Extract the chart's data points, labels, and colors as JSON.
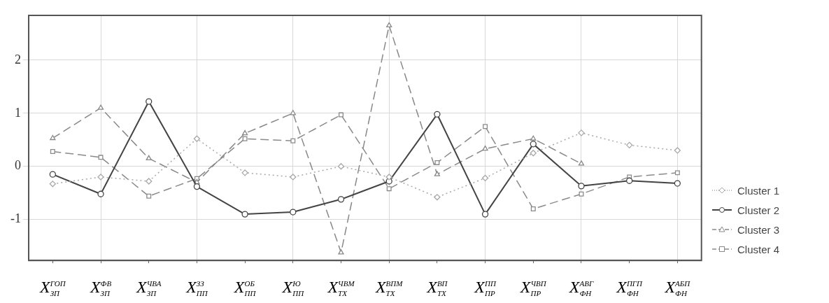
{
  "chart_data": {
    "type": "line",
    "categories": [
      "X$^{ГОП}$$_{ЗП}$",
      "X$^{ФВ}$$_{ЗП}$",
      "X$^{ЧВА}$$_{ЗП}$",
      "X$^{ЗЗ}$$_{ПП}$",
      "X$^{ОБ}$$_{ПП}$",
      "X$^{Ю}$$_{ПП}$",
      "X$^{ЧВМ}$$_{ТХ}$",
      "X$^{ВПМ}$$_{ТХ}$",
      "X$^{ВП}$$_{ТХ}$",
      "X$^{ПП}$$_{ПР}$",
      "X$^{ЧВП}$$_{ПР}$",
      "X$^{АВГ}$$_{ФН}$",
      "X$^{ПГП}$$_{ФН}$",
      "X$^{АБП}$$_{ФН}$"
    ],
    "series": [
      {
        "name": "Cluster 1",
        "color": "#a8a8a8",
        "marker": "diamond",
        "line_style": "dotted",
        "values": [
          -0.33,
          -0.2,
          -0.28,
          0.52,
          -0.12,
          -0.2,
          0,
          -0.2,
          -0.58,
          -0.22,
          0.25,
          0.63,
          0.4,
          0.3
        ]
      },
      {
        "name": "Cluster 2",
        "color": "#444444",
        "marker": "circle",
        "line_style": "solid",
        "values": [
          -0.15,
          -0.52,
          1.22,
          -0.38,
          -0.9,
          -0.86,
          -0.62,
          -0.28,
          0.98,
          -0.9,
          0.42,
          -0.37,
          -0.27,
          -0.32
        ]
      },
      {
        "name": "Cluster 3",
        "color": "#888888",
        "marker": "triangle",
        "line_style": "dashed",
        "values": [
          0.53,
          1.1,
          0.15,
          -0.3,
          0.62,
          1.0,
          -1.62,
          2.65,
          -0.15,
          0.33,
          0.52,
          0.05,
          null,
          null
        ]
      },
      {
        "name": "Cluster 4",
        "color": "#8a8a8a",
        "marker": "square",
        "line_style": "dashed",
        "values": [
          0.28,
          0.17,
          -0.56,
          -0.23,
          0.52,
          0.48,
          0.97,
          -0.42,
          0.07,
          0.75,
          -0.8,
          -0.52,
          -0.2,
          -0.12
        ]
      }
    ],
    "ylim": [
      -1.77,
      2.84
    ],
    "yticks": [
      -1,
      0,
      1,
      2
    ],
    "grid": true,
    "legend": "right"
  }
}
